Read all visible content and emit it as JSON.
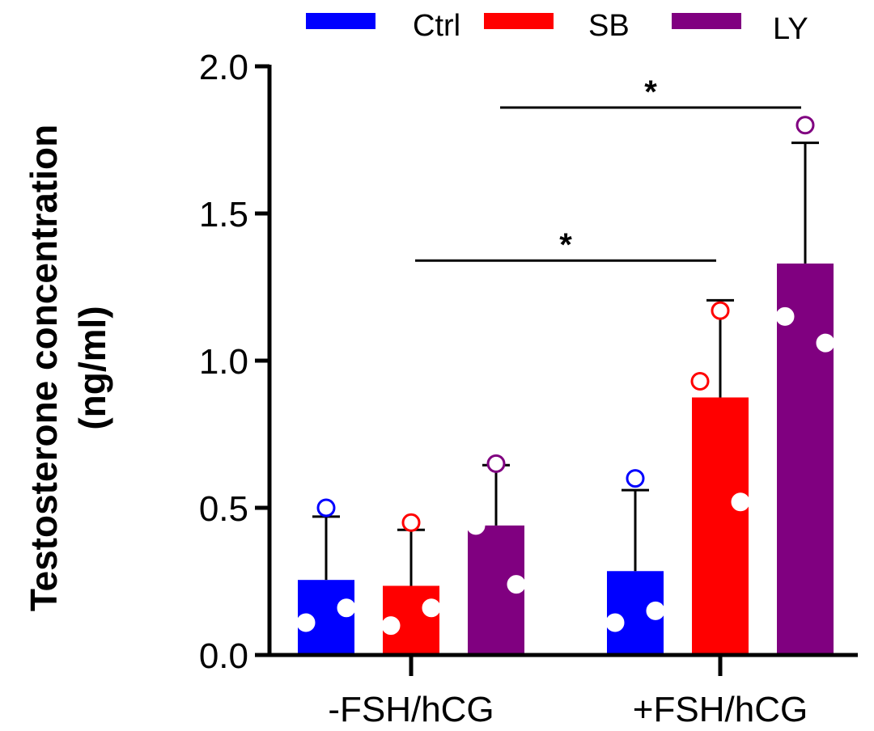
{
  "chart_data": {
    "type": "bar",
    "title": "",
    "xlabel": "",
    "ylabel_lines": [
      "Testosterone concentration",
      "(ng/ml)"
    ],
    "ylim": [
      0,
      2.0
    ],
    "yticks": [
      0.0,
      0.5,
      1.0,
      1.5,
      2.0
    ],
    "ytick_labels": [
      "0.0",
      "0.5",
      "1.0",
      "1.5",
      "2.0"
    ],
    "categories": [
      "-FSH/hCG",
      "+FSH/hCG"
    ],
    "legend_position": "top",
    "series": [
      {
        "name": "Ctrl",
        "color": "#0000ff",
        "values": [
          0.255,
          0.285
        ],
        "error_upper": [
          0.47,
          0.56
        ],
        "points": [
          [
            0.5,
            0.11,
            0.16
          ],
          [
            0.6,
            0.11,
            0.15
          ]
        ]
      },
      {
        "name": "SB",
        "color": "#ff0000",
        "values": [
          0.235,
          0.875
        ],
        "error_upper": [
          0.425,
          1.205
        ],
        "points": [
          [
            0.45,
            0.1,
            0.16
          ],
          [
            1.17,
            0.93,
            0.52
          ]
        ]
      },
      {
        "name": "LY",
        "color": "#800080",
        "values": [
          0.44,
          1.33
        ],
        "error_upper": [
          0.645,
          1.74
        ],
        "points": [
          [
            0.65,
            0.44,
            0.24
          ],
          [
            1.8,
            1.15,
            1.06
          ]
        ]
      }
    ],
    "annotations": [
      {
        "label": "*",
        "from": "-FSH/hCG SB",
        "to": "+FSH/hCG SB",
        "y": 1.34
      },
      {
        "label": "*",
        "from": "-FSH/hCG LY",
        "to": "+FSH/hCG LY",
        "y": 1.86
      }
    ]
  }
}
